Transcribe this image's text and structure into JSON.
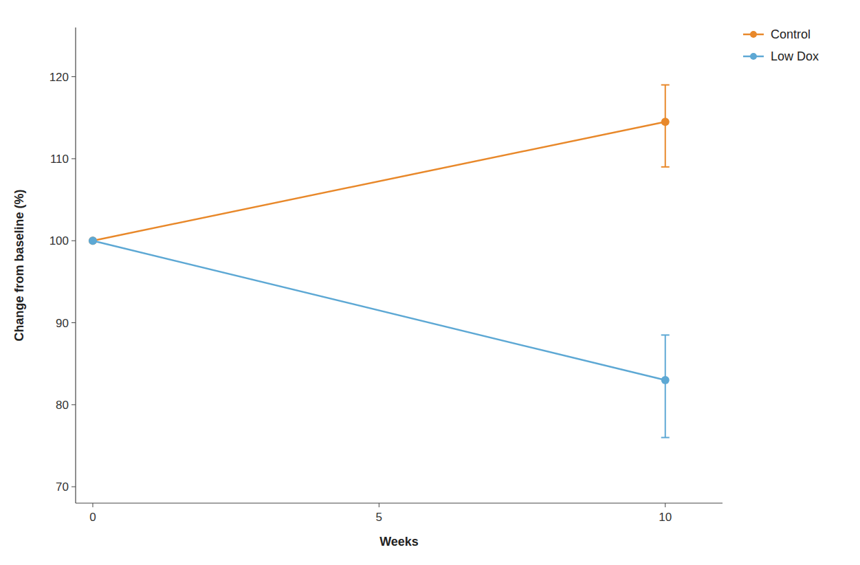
{
  "chart_data": {
    "type": "line",
    "xlabel": "Weeks",
    "ylabel": "Change from baseline (%)",
    "x": [
      0,
      10
    ],
    "series": [
      {
        "name": "Control",
        "color": "#E8882A",
        "marker": "circle",
        "values": [
          100,
          114.5
        ],
        "error_lower": [
          0,
          5.5
        ],
        "error_upper": [
          0,
          4.5
        ]
      },
      {
        "name": "Low Dox",
        "color": "#5DA8D4",
        "marker": "circle",
        "values": [
          100,
          83
        ],
        "error_lower": [
          0,
          7
        ],
        "error_upper": [
          0,
          5.5
        ]
      }
    ],
    "xlim": [
      -0.3,
      11.0
    ],
    "ylim": [
      68,
      126
    ],
    "xticks": [
      0,
      5,
      10
    ],
    "yticks": [
      70,
      80,
      90,
      100,
      110,
      120
    ],
    "grid": false,
    "legend": "upper right"
  }
}
